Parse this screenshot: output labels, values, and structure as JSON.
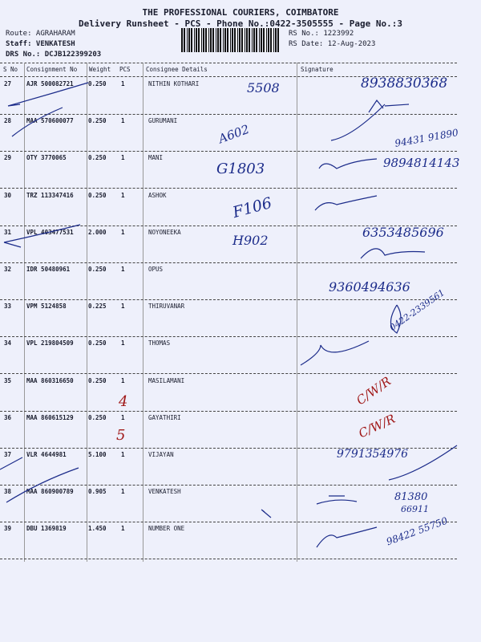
{
  "header": {
    "title": "THE PROFESSIONAL COURIERS, COIMBATORE",
    "subtitle": "Delivery Runsheet - PCS - Phone No.:0422-3505555 - Page No.:3",
    "route": "Route: AGRAHARAM",
    "staff": "Staff: VENKATESH",
    "drs_no": "DRS No.: DCJB122399203",
    "rs_no": "RS No.: 1223992",
    "rs_date": "RS Date: 12-Aug-2023"
  },
  "table": {
    "columns": [
      "S No",
      "Consignment No",
      "Weight",
      "PCS",
      "Consignee Details",
      "Signature"
    ],
    "rows": [
      {
        "sno": "27",
        "consignment": "AJR 500082721",
        "weight": "0.250",
        "pcs": "1",
        "consignee": "NITHIN KOTHARI"
      },
      {
        "sno": "28",
        "consignment": "MAA 570600077",
        "weight": "0.250",
        "pcs": "1",
        "consignee": "GURUMANI"
      },
      {
        "sno": "29",
        "consignment": "OTY 3770065",
        "weight": "0.250",
        "pcs": "1",
        "consignee": "MANI"
      },
      {
        "sno": "30",
        "consignment": "TRZ 113347416",
        "weight": "0.250",
        "pcs": "1",
        "consignee": "ASHOK"
      },
      {
        "sno": "31",
        "consignment": "VPL 403477531",
        "weight": "2.000",
        "pcs": "1",
        "consignee": "NOYONEEKA"
      },
      {
        "sno": "32",
        "consignment": "IDR 50480961",
        "weight": "0.250",
        "pcs": "1",
        "consignee": "OPUS"
      },
      {
        "sno": "33",
        "consignment": "VPM 5124858",
        "weight": "0.225",
        "pcs": "1",
        "consignee": "THIRUVANAR"
      },
      {
        "sno": "34",
        "consignment": "VPL 219804509",
        "weight": "0.250",
        "pcs": "1",
        "consignee": "THOMAS"
      },
      {
        "sno": "35",
        "consignment": "MAA 860316650",
        "weight": "0.250",
        "pcs": "1",
        "consignee": "MASILAMANI"
      },
      {
        "sno": "36",
        "consignment": "MAA 860615129",
        "weight": "0.250",
        "pcs": "1",
        "consignee": "GAYATHIRI"
      },
      {
        "sno": "37",
        "consignment": "VLR 4644981",
        "weight": "5.100",
        "pcs": "1",
        "consignee": "VIJAYAN"
      },
      {
        "sno": "38",
        "consignment": "MAA 860900789",
        "weight": "0.905",
        "pcs": "1",
        "consignee": "VENKATESH"
      },
      {
        "sno": "39",
        "consignment": "DBU 1369819",
        "weight": "1.450",
        "pcs": "1",
        "consignee": "NUMBER ONE"
      }
    ]
  },
  "handwritten": [
    {
      "text": "5508"
    },
    {
      "text": "8938830368"
    },
    {
      "text": "A602"
    },
    {
      "text": "94431 91890"
    },
    {
      "text": "G1803"
    },
    {
      "text": "9894814143"
    },
    {
      "text": "F106"
    },
    {
      "text": "H902"
    },
    {
      "text": "6353485696"
    },
    {
      "text": "9360494636"
    },
    {
      "text": "0422-2339561"
    },
    {
      "text": "C/W/R"
    },
    {
      "text": "C/W/R"
    },
    {
      "text": "9791354976"
    },
    {
      "text": "81380"
    },
    {
      "text": "66911"
    },
    {
      "text": "98422 55750"
    },
    {
      "text": "4"
    },
    {
      "text": "5"
    }
  ],
  "colors": {
    "ink_blue": "#1c2c8a",
    "ink_red": "#a01818",
    "paper": "#eef0fb"
  }
}
